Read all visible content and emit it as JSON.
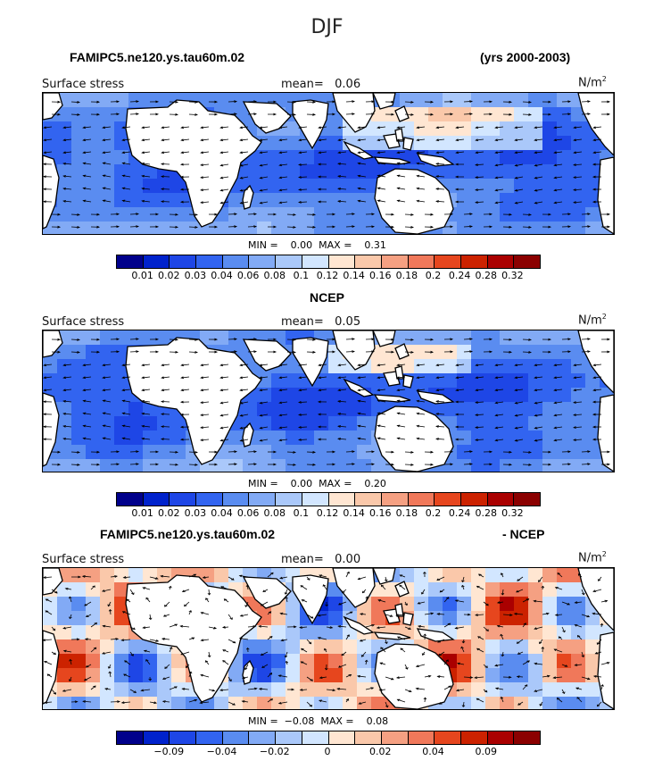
{
  "page_title": "DJF",
  "panels": [
    {
      "header_left": "FAMIPC5.ne120.ys.tau60m.02",
      "header_right": "(yrs 2000-2003)",
      "field_label": "Surface stress",
      "mean_text": "mean=   0.06",
      "units_text": "N/m",
      "units_exp": "2",
      "minmax_text": "MIN =    0.00  MAX =    0.31",
      "colorbar_ticks": [
        "0.01",
        "0.02",
        "0.03",
        "0.04",
        "0.06",
        "0.08",
        "0.1",
        "0.12",
        "0.14",
        "0.16",
        "0.18",
        "0.2",
        "0.24",
        "0.28",
        "0.32"
      ]
    },
    {
      "header_center": "NCEP",
      "field_label": "Surface stress",
      "mean_text": "mean=   0.05",
      "units_text": "N/m",
      "units_exp": "2",
      "minmax_text": "MIN =    0.00  MAX =    0.20",
      "colorbar_ticks": [
        "0.01",
        "0.02",
        "0.03",
        "0.04",
        "0.06",
        "0.08",
        "0.1",
        "0.12",
        "0.14",
        "0.16",
        "0.18",
        "0.2",
        "0.24",
        "0.28",
        "0.32"
      ]
    },
    {
      "header_left": "FAMIPC5.ne120.ys.tau60m.02",
      "header_right": "- NCEP",
      "field_label": "Surface stress",
      "mean_text": "mean=   0.00",
      "units_text": "N/m",
      "units_exp": "2",
      "minmax_text": "MIN =  −0.08  MAX =    0.08",
      "colorbar_ticks": [
        "−0.09",
        "−0.04",
        "−0.02",
        "0",
        "0.02",
        "0.04",
        "0.09"
      ]
    }
  ],
  "colors": {
    "scale": [
      "#00008b",
      "#0022cc",
      "#1e46e6",
      "#3264f0",
      "#5a8cf0",
      "#82aaf5",
      "#aac8fa",
      "#d2e6ff",
      "#ffe6d2",
      "#fac8aa",
      "#f5a082",
      "#f0785a",
      "#e6461e",
      "#cc2200",
      "#aa0000",
      "#8b0000"
    ],
    "land": "#ffffff",
    "coast": "#000000",
    "vector": "#000000"
  }
}
